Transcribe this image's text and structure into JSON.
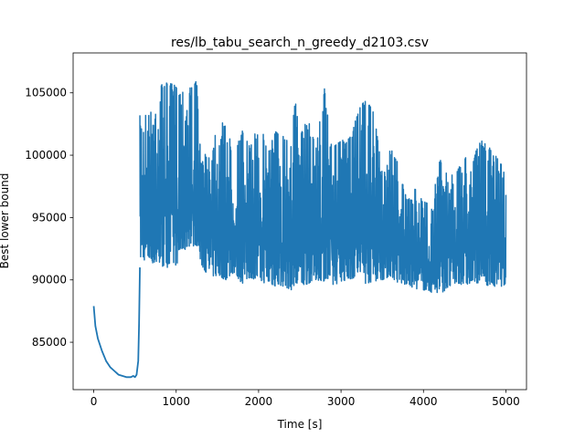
{
  "chart_data": {
    "type": "line",
    "title": "res/lb_tabu_search_n_greedy_d2103.csv",
    "xlabel": "Time [s]",
    "ylabel": "Best lower bound",
    "xlim": [
      -250,
      5250
    ],
    "ylim": [
      81200,
      108200
    ],
    "xticks": [
      0,
      1000,
      2000,
      3000,
      4000,
      5000
    ],
    "xtick_labels": [
      "0",
      "1000",
      "2000",
      "3000",
      "4000",
      "5000"
    ],
    "yticks": [
      85000,
      90000,
      95000,
      100000,
      105000
    ],
    "ytick_labels": [
      "85000",
      "90000",
      "95000",
      "100000",
      "105000"
    ],
    "grid": false,
    "line_color": "#1f77b4",
    "series": [
      {
        "x": [
          0,
          20,
          50,
          100,
          150,
          200,
          250,
          300,
          350,
          400,
          450,
          480,
          500,
          520,
          540,
          550,
          560
        ],
        "y": [
          87900,
          86300,
          85300,
          84300,
          83500,
          83000,
          82700,
          82400,
          82300,
          82200,
          82200,
          82300,
          82200,
          82400,
          83500,
          86500,
          91000
        ],
        "name": ""
      },
      {
        "x": [
          560,
          700,
          800,
          900,
          1000,
          1100,
          1150,
          1200,
          1250,
          1300,
          1350,
          1400,
          1500,
          1600,
          1700,
          1800,
          1900,
          2000,
          2100,
          2200,
          2300,
          2400,
          2450,
          2500,
          2600,
          2700,
          2800,
          2900,
          3000,
          3100,
          3200,
          3300,
          3400,
          3500,
          3600,
          3700,
          3800,
          3900,
          4000,
          4100,
          4200,
          4300,
          4400,
          4500,
          4600,
          4700,
          4800,
          4900,
          5000
        ],
        "y_max": [
          103200,
          103500,
          105700,
          105800,
          105600,
          105500,
          106300,
          105200,
          106200,
          99500,
          100000,
          101000,
          102400,
          102700,
          100000,
          102000,
          100600,
          102600,
          101000,
          102000,
          101600,
          103200,
          104200,
          101500,
          103000,
          100800,
          105400,
          100600,
          101200,
          101300,
          103500,
          104500,
          103400,
          98600,
          100600,
          99300,
          96300,
          97300,
          96300,
          96000,
          99800,
          98300,
          98600,
          99900,
          99800,
          101200,
          100600,
          99800,
          98700
        ],
        "y_min": [
          91700,
          91400,
          91100,
          91000,
          91200,
          92300,
          92700,
          92700,
          92800,
          91300,
          90700,
          90300,
          90300,
          90000,
          90600,
          89700,
          90200,
          89900,
          89700,
          89500,
          89500,
          89200,
          89300,
          89400,
          89700,
          90000,
          89900,
          89500,
          89900,
          90000,
          90300,
          89700,
          89900,
          90000,
          90300,
          89700,
          89600,
          89300,
          89200,
          89000,
          88900,
          89300,
          89700,
          89600,
          89700,
          89800,
          89500,
          89400,
          89600
        ],
        "name": ""
      }
    ]
  }
}
